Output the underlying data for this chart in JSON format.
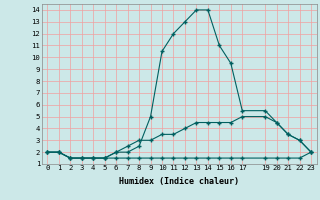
{
  "xlabel": "Humidex (Indice chaleur)",
  "bg_color": "#cce8e8",
  "grid_color": "#f0a0a0",
  "line_color": "#006060",
  "xlim": [
    -0.5,
    23.5
  ],
  "ylim": [
    1,
    14.5
  ],
  "xticks": [
    0,
    1,
    2,
    3,
    4,
    5,
    6,
    7,
    8,
    9,
    10,
    11,
    12,
    13,
    14,
    15,
    16,
    17,
    19,
    20,
    21,
    22,
    23
  ],
  "yticks": [
    1,
    2,
    3,
    4,
    5,
    6,
    7,
    8,
    9,
    10,
    11,
    12,
    13,
    14
  ],
  "line1_x": [
    0,
    1,
    2,
    3,
    4,
    5,
    6,
    7,
    8,
    9,
    10,
    11,
    12,
    13,
    14,
    15,
    16,
    17,
    19,
    20,
    21,
    22,
    23
  ],
  "line1_y": [
    2,
    2,
    1.5,
    1.5,
    1.5,
    1.5,
    2,
    2,
    2.5,
    5,
    10.5,
    12,
    13,
    14,
    14,
    11,
    9.5,
    5.5,
    5.5,
    4.5,
    3.5,
    3,
    2
  ],
  "line2_x": [
    0,
    1,
    2,
    3,
    4,
    5,
    6,
    7,
    8,
    9,
    10,
    11,
    12,
    13,
    14,
    15,
    16,
    17,
    19,
    20,
    21,
    22,
    23
  ],
  "line2_y": [
    2,
    2,
    1.5,
    1.5,
    1.5,
    1.5,
    2,
    2.5,
    3,
    3,
    3.5,
    3.5,
    4,
    4.5,
    4.5,
    4.5,
    4.5,
    5,
    5,
    4.5,
    3.5,
    3,
    2
  ],
  "line3_x": [
    0,
    1,
    2,
    3,
    4,
    5,
    6,
    7,
    8,
    9,
    10,
    11,
    12,
    13,
    14,
    15,
    16,
    17,
    19,
    20,
    21,
    22,
    23
  ],
  "line3_y": [
    2,
    2,
    1.5,
    1.5,
    1.5,
    1.5,
    1.5,
    1.5,
    1.5,
    1.5,
    1.5,
    1.5,
    1.5,
    1.5,
    1.5,
    1.5,
    1.5,
    1.5,
    1.5,
    1.5,
    1.5,
    1.5,
    2
  ],
  "tick_fontsize": 5.2,
  "xlabel_fontsize": 6.0
}
